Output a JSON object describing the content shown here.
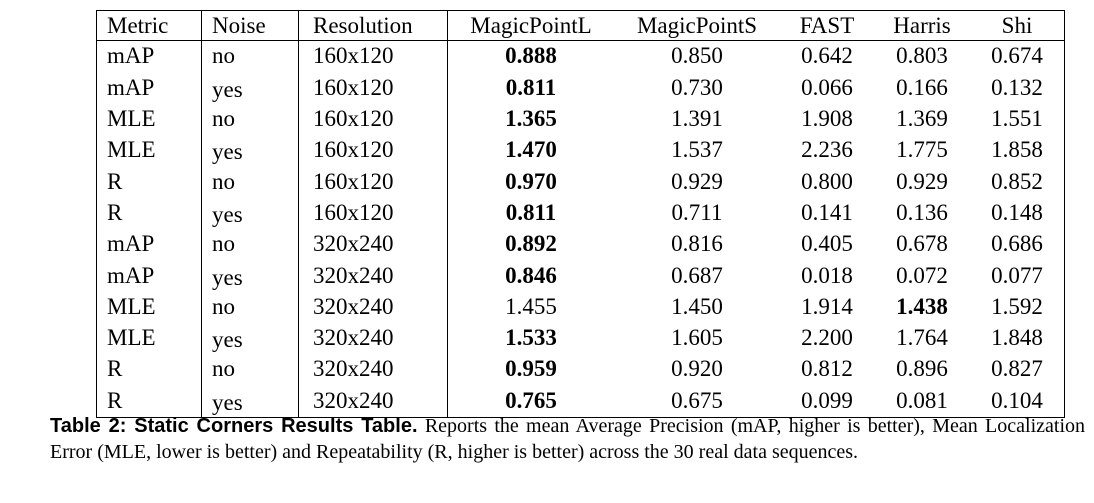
{
  "table": {
    "headers": [
      "Metric",
      "Noise",
      "Resolution",
      "MagicPointL",
      "MagicPointS",
      "FAST",
      "Harris",
      "Shi"
    ],
    "rows": [
      {
        "metric": "mAP",
        "noise": "no",
        "resolution": "160x120",
        "mpl": "0.888",
        "mps": "0.850",
        "fast": "0.642",
        "harris": "0.803",
        "shi": "0.674",
        "bold": "mpl"
      },
      {
        "metric": "mAP",
        "noise": "yes",
        "resolution": "160x120",
        "mpl": "0.811",
        "mps": "0.730",
        "fast": "0.066",
        "harris": "0.166",
        "shi": "0.132",
        "bold": "mpl"
      },
      {
        "metric": "MLE",
        "noise": "no",
        "resolution": "160x120",
        "mpl": "1.365",
        "mps": "1.391",
        "fast": "1.908",
        "harris": "1.369",
        "shi": "1.551",
        "bold": "mpl"
      },
      {
        "metric": "MLE",
        "noise": "yes",
        "resolution": "160x120",
        "mpl": "1.470",
        "mps": "1.537",
        "fast": "2.236",
        "harris": "1.775",
        "shi": "1.858",
        "bold": "mpl"
      },
      {
        "metric": "R",
        "noise": "no",
        "resolution": "160x120",
        "mpl": "0.970",
        "mps": "0.929",
        "fast": "0.800",
        "harris": "0.929",
        "shi": "0.852",
        "bold": "mpl"
      },
      {
        "metric": "R",
        "noise": "yes",
        "resolution": "160x120",
        "mpl": "0.811",
        "mps": "0.711",
        "fast": "0.141",
        "harris": "0.136",
        "shi": "0.148",
        "bold": "mpl"
      },
      {
        "metric": "mAP",
        "noise": "no",
        "resolution": "320x240",
        "mpl": "0.892",
        "mps": "0.816",
        "fast": "0.405",
        "harris": "0.678",
        "shi": "0.686",
        "bold": "mpl"
      },
      {
        "metric": "mAP",
        "noise": "yes",
        "resolution": "320x240",
        "mpl": "0.846",
        "mps": "0.687",
        "fast": "0.018",
        "harris": "0.072",
        "shi": "0.077",
        "bold": "mpl"
      },
      {
        "metric": "MLE",
        "noise": "no",
        "resolution": "320x240",
        "mpl": "1.455",
        "mps": "1.450",
        "fast": "1.914",
        "harris": "1.438",
        "shi": "1.592",
        "bold": "harris"
      },
      {
        "metric": "MLE",
        "noise": "yes",
        "resolution": "320x240",
        "mpl": "1.533",
        "mps": "1.605",
        "fast": "2.200",
        "harris": "1.764",
        "shi": "1.848",
        "bold": "mpl"
      },
      {
        "metric": "R",
        "noise": "no",
        "resolution": "320x240",
        "mpl": "0.959",
        "mps": "0.920",
        "fast": "0.812",
        "harris": "0.896",
        "shi": "0.827",
        "bold": "mpl"
      },
      {
        "metric": "R",
        "noise": "yes",
        "resolution": "320x240",
        "mpl": "0.765",
        "mps": "0.675",
        "fast": "0.099",
        "harris": "0.081",
        "shi": "0.104",
        "bold": "mpl"
      }
    ]
  },
  "caption": {
    "title": "Table 2: Static Corners Results Table.",
    "body": " Reports the mean Average Precision (mAP, higher is better), Mean Localization Error (MLE, lower is better) and Repeatability (R, higher is better) across the 30 real data sequences."
  }
}
